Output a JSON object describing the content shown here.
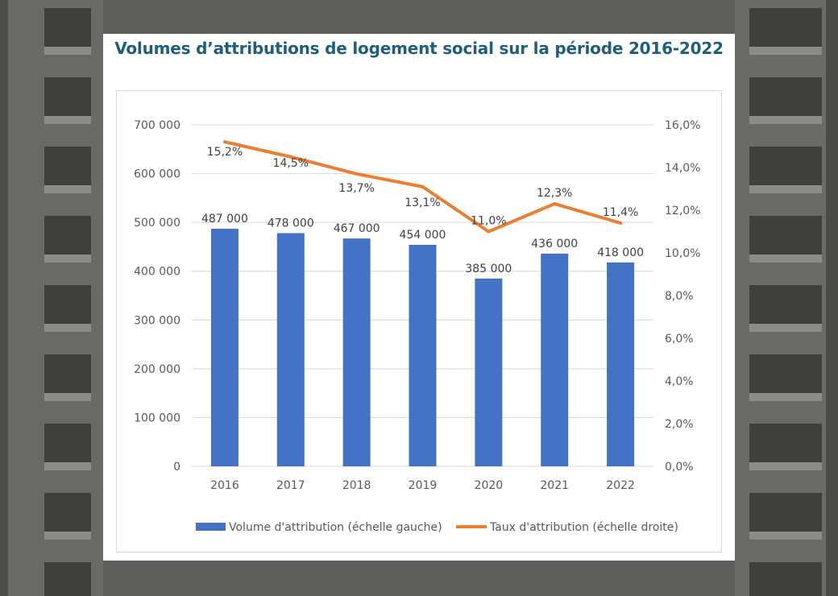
{
  "page": {
    "background_colors": {
      "building": "#5b5b58",
      "card": "#ffffff"
    }
  },
  "chart_data": {
    "type": "bar",
    "title": "Volumes d’attributions de logement social sur la période 2016-2022",
    "categories": [
      "2016",
      "2017",
      "2018",
      "2019",
      "2020",
      "2021",
      "2022"
    ],
    "series": [
      {
        "name": "Volume d'attribution (échelle gauche)",
        "type": "bar",
        "axis": "left",
        "color": "#4472c4",
        "values": [
          487000,
          478000,
          467000,
          454000,
          385000,
          436000,
          418000
        ],
        "labels": [
          "487 000",
          "478 000",
          "467 000",
          "454 000",
          "385 000",
          "436 000",
          "418 000"
        ]
      },
      {
        "name": "Taux d'attribution (échelle droite)",
        "type": "line",
        "axis": "right",
        "color": "#ed7d31",
        "values": [
          15.2,
          14.5,
          13.7,
          13.1,
          11.0,
          12.3,
          11.4
        ],
        "labels": [
          "15,2%",
          "14,5%",
          "13,7%",
          "13,1%",
          "11,0%",
          "12,3%",
          "11,4%"
        ]
      }
    ],
    "y_left": {
      "lim": [
        0,
        700000
      ],
      "ticks": [
        0,
        100000,
        200000,
        300000,
        400000,
        500000,
        600000,
        700000
      ],
      "tick_labels": [
        "0",
        "100 000",
        "200 000",
        "300 000",
        "400 000",
        "500 000",
        "600 000",
        "700 000"
      ]
    },
    "y_right": {
      "lim": [
        0,
        16
      ],
      "ticks": [
        0,
        2,
        4,
        6,
        8,
        10,
        12,
        14,
        16
      ],
      "tick_labels": [
        "0,0%",
        "2,0%",
        "4,0%",
        "6,0%",
        "8,0%",
        "10,0%",
        "12,0%",
        "14,0%",
        "16,0%"
      ]
    },
    "xlabel": "",
    "ylabel": "",
    "grid": true,
    "legend": "bottom"
  }
}
